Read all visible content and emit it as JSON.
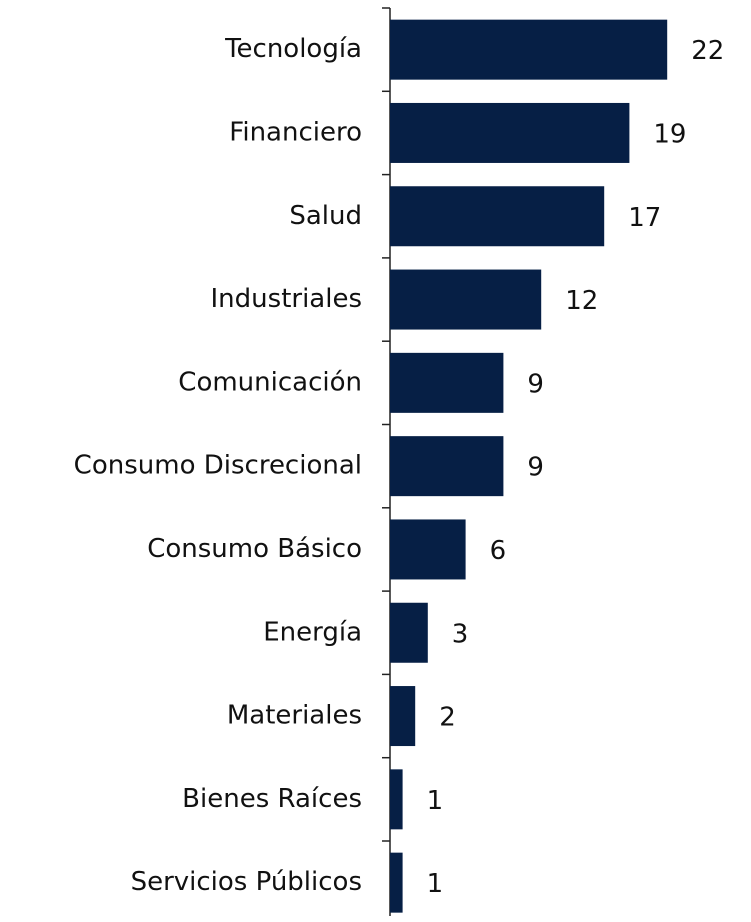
{
  "chart_data": {
    "type": "barh",
    "categories": [
      "Tecnología",
      "Financiero",
      "Salud",
      "Industriales",
      "Comunicación",
      "Consumo Discrecional",
      "Consumo Básico",
      "Energía",
      "Materiales",
      "Bienes Raíces",
      "Servicios Públicos"
    ],
    "values": [
      22,
      19,
      17,
      12,
      9,
      9,
      6,
      3,
      2,
      1,
      1
    ],
    "color": "#061f45"
  }
}
